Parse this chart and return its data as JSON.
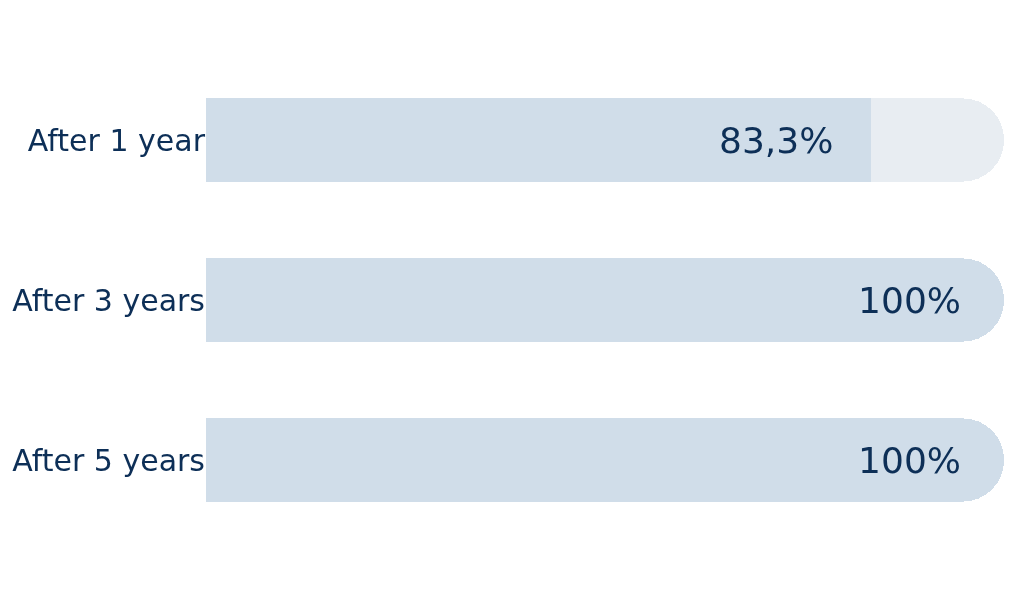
{
  "chart_data": {
    "type": "bar",
    "orientation": "horizontal",
    "stacked": true,
    "categories": [
      "After 1 year",
      "After 3 years",
      "After 5 years"
    ],
    "series": [
      {
        "color": "#d0dde9",
        "values": [
          83.3,
          100,
          100
        ],
        "value_labels": [
          "83,3%",
          "100%",
          "100%"
        ]
      },
      {
        "color": "#e8edf2",
        "values": [
          16.7,
          null,
          null
        ]
      }
    ],
    "xlim": [
      0,
      100
    ],
    "tick_labels": "y"
  }
}
